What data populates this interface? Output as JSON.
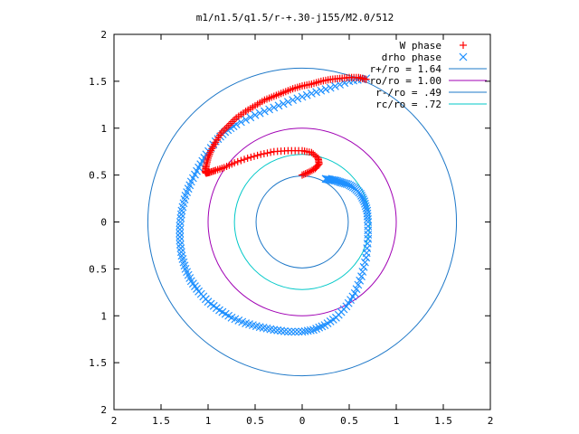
{
  "chart_data": {
    "type": "scatter",
    "title": "m1/n1.5/q1.5/r-+.30-j155/M2.0/512",
    "xlim": [
      -2,
      2
    ],
    "ylim": [
      -2,
      2
    ],
    "x_ticks": [
      -2,
      -1.5,
      -1,
      -0.5,
      0,
      0.5,
      1,
      1.5,
      2
    ],
    "x_tick_labels": [
      "2",
      "1.5",
      "1",
      "0.5",
      "0",
      "0.5",
      "1",
      "1.5",
      "2"
    ],
    "y_ticks": [
      2,
      1.5,
      1,
      0.5,
      0,
      -0.5,
      -1,
      -1.5,
      -2
    ],
    "y_tick_labels": [
      "2",
      "1.5",
      "1",
      "0.5",
      "0",
      "0.5",
      "1",
      "1.5",
      "2"
    ],
    "grid": false,
    "legend_position": "top-right",
    "legend": [
      {
        "label": "W phase",
        "marker": "+",
        "color": "#ff0000"
      },
      {
        "label": "drho phase",
        "marker": "x",
        "color": "#1e90ff"
      },
      {
        "label": "r+/ro = 1.64",
        "line": true,
        "color": "#1e78c8"
      },
      {
        "label": "ro/ro = 1.00",
        "line": true,
        "color": "#a000b4"
      },
      {
        "label": "r-/ro = .49",
        "line": true,
        "color": "#1e78c8"
      },
      {
        "label": "rc/ro = .72",
        "line": true,
        "color": "#00c8c8"
      }
    ],
    "circles": [
      {
        "name": "r+/ro = 1.64",
        "r": 1.64,
        "color": "#1e78c8"
      },
      {
        "name": "ro/ro = 1.00",
        "r": 1.0,
        "color": "#a000b4"
      },
      {
        "name": "r-/ro = .49",
        "r": 0.49,
        "color": "#1e78c8"
      },
      {
        "name": "rc/ro = .72",
        "r": 0.72,
        "color": "#00c8c8"
      }
    ],
    "series": [
      {
        "name": "W phase",
        "marker": "+",
        "color": "#ff0000",
        "x": [
          0.68,
          0.6,
          0.5,
          0.4,
          0.3,
          0.2,
          0.1,
          0.0,
          -0.1,
          -0.2,
          -0.3,
          -0.4,
          -0.5,
          -0.6,
          -0.7,
          -0.78,
          -0.86,
          -0.92,
          -0.97,
          -1.0,
          -1.02,
          -1.03,
          -1.02,
          -0.98,
          -0.92,
          -0.83,
          -0.72,
          -0.58,
          -0.44,
          -0.3,
          -0.15,
          0.0,
          0.1,
          0.17,
          0.18,
          0.14,
          0.07,
          0.0
        ],
        "y": [
          1.52,
          1.54,
          1.54,
          1.53,
          1.52,
          1.5,
          1.47,
          1.45,
          1.42,
          1.38,
          1.34,
          1.3,
          1.24,
          1.18,
          1.11,
          1.03,
          0.95,
          0.85,
          0.76,
          0.68,
          0.6,
          0.54,
          0.52,
          0.53,
          0.55,
          0.58,
          0.63,
          0.68,
          0.72,
          0.75,
          0.76,
          0.76,
          0.74,
          0.68,
          0.62,
          0.57,
          0.53,
          0.5
        ]
      },
      {
        "name": "drho phase",
        "marker": "x",
        "color": "#1e90ff",
        "x": [
          0.68,
          0.5,
          0.3,
          0.1,
          -0.1,
          -0.3,
          -0.5,
          -0.7,
          -0.82,
          -0.92,
          -1.02,
          -1.1,
          -1.18,
          -1.24,
          -1.28,
          -1.3,
          -1.3,
          -1.28,
          -1.24,
          -1.18,
          -1.1,
          -1.0,
          -0.88,
          -0.75,
          -0.6,
          -0.45,
          -0.3,
          -0.15,
          0.0,
          0.12,
          0.24,
          0.36,
          0.47,
          0.56,
          0.63,
          0.68,
          0.7,
          0.7,
          0.69,
          0.66,
          0.62,
          0.56,
          0.49,
          0.42,
          0.36,
          0.3,
          0.25
        ],
        "y": [
          1.53,
          1.5,
          1.43,
          1.37,
          1.3,
          1.22,
          1.14,
          1.04,
          0.96,
          0.86,
          0.72,
          0.58,
          0.43,
          0.28,
          0.12,
          -0.04,
          -0.2,
          -0.36,
          -0.5,
          -0.63,
          -0.74,
          -0.85,
          -0.94,
          -1.02,
          -1.08,
          -1.12,
          -1.15,
          -1.17,
          -1.17,
          -1.15,
          -1.1,
          -1.02,
          -0.9,
          -0.76,
          -0.58,
          -0.38,
          -0.18,
          0.0,
          0.12,
          0.22,
          0.3,
          0.36,
          0.4,
          0.42,
          0.44,
          0.45,
          0.46
        ]
      }
    ]
  }
}
